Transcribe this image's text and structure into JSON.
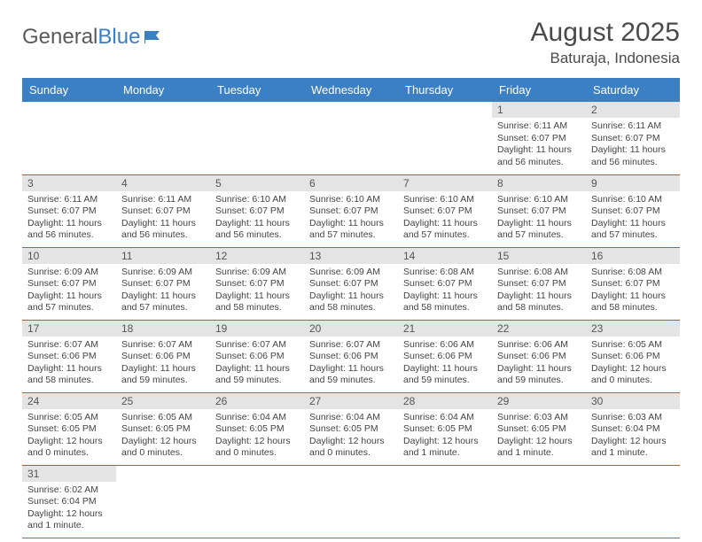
{
  "logo": {
    "text1": "General",
    "text2": "Blue"
  },
  "title": "August 2025",
  "location": "Baturaja, Indonesia",
  "colors": {
    "header_bg": "#3b7fc4",
    "header_text": "#ffffff",
    "daynum_bg": "#e4e4e4",
    "cell_border": "#3b7fc4",
    "body_text": "#444444"
  },
  "dayHeaders": [
    "Sunday",
    "Monday",
    "Tuesday",
    "Wednesday",
    "Thursday",
    "Friday",
    "Saturday"
  ],
  "weeks": [
    [
      null,
      null,
      null,
      null,
      null,
      {
        "n": "1",
        "sr": "Sunrise: 6:11 AM",
        "ss": "Sunset: 6:07 PM",
        "dl": "Daylight: 11 hours and 56 minutes."
      },
      {
        "n": "2",
        "sr": "Sunrise: 6:11 AM",
        "ss": "Sunset: 6:07 PM",
        "dl": "Daylight: 11 hours and 56 minutes."
      }
    ],
    [
      {
        "n": "3",
        "sr": "Sunrise: 6:11 AM",
        "ss": "Sunset: 6:07 PM",
        "dl": "Daylight: 11 hours and 56 minutes."
      },
      {
        "n": "4",
        "sr": "Sunrise: 6:11 AM",
        "ss": "Sunset: 6:07 PM",
        "dl": "Daylight: 11 hours and 56 minutes."
      },
      {
        "n": "5",
        "sr": "Sunrise: 6:10 AM",
        "ss": "Sunset: 6:07 PM",
        "dl": "Daylight: 11 hours and 56 minutes."
      },
      {
        "n": "6",
        "sr": "Sunrise: 6:10 AM",
        "ss": "Sunset: 6:07 PM",
        "dl": "Daylight: 11 hours and 57 minutes."
      },
      {
        "n": "7",
        "sr": "Sunrise: 6:10 AM",
        "ss": "Sunset: 6:07 PM",
        "dl": "Daylight: 11 hours and 57 minutes."
      },
      {
        "n": "8",
        "sr": "Sunrise: 6:10 AM",
        "ss": "Sunset: 6:07 PM",
        "dl": "Daylight: 11 hours and 57 minutes."
      },
      {
        "n": "9",
        "sr": "Sunrise: 6:10 AM",
        "ss": "Sunset: 6:07 PM",
        "dl": "Daylight: 11 hours and 57 minutes."
      }
    ],
    [
      {
        "n": "10",
        "sr": "Sunrise: 6:09 AM",
        "ss": "Sunset: 6:07 PM",
        "dl": "Daylight: 11 hours and 57 minutes."
      },
      {
        "n": "11",
        "sr": "Sunrise: 6:09 AM",
        "ss": "Sunset: 6:07 PM",
        "dl": "Daylight: 11 hours and 57 minutes."
      },
      {
        "n": "12",
        "sr": "Sunrise: 6:09 AM",
        "ss": "Sunset: 6:07 PM",
        "dl": "Daylight: 11 hours and 58 minutes."
      },
      {
        "n": "13",
        "sr": "Sunrise: 6:09 AM",
        "ss": "Sunset: 6:07 PM",
        "dl": "Daylight: 11 hours and 58 minutes."
      },
      {
        "n": "14",
        "sr": "Sunrise: 6:08 AM",
        "ss": "Sunset: 6:07 PM",
        "dl": "Daylight: 11 hours and 58 minutes."
      },
      {
        "n": "15",
        "sr": "Sunrise: 6:08 AM",
        "ss": "Sunset: 6:07 PM",
        "dl": "Daylight: 11 hours and 58 minutes."
      },
      {
        "n": "16",
        "sr": "Sunrise: 6:08 AM",
        "ss": "Sunset: 6:07 PM",
        "dl": "Daylight: 11 hours and 58 minutes."
      }
    ],
    [
      {
        "n": "17",
        "sr": "Sunrise: 6:07 AM",
        "ss": "Sunset: 6:06 PM",
        "dl": "Daylight: 11 hours and 58 minutes."
      },
      {
        "n": "18",
        "sr": "Sunrise: 6:07 AM",
        "ss": "Sunset: 6:06 PM",
        "dl": "Daylight: 11 hours and 59 minutes."
      },
      {
        "n": "19",
        "sr": "Sunrise: 6:07 AM",
        "ss": "Sunset: 6:06 PM",
        "dl": "Daylight: 11 hours and 59 minutes."
      },
      {
        "n": "20",
        "sr": "Sunrise: 6:07 AM",
        "ss": "Sunset: 6:06 PM",
        "dl": "Daylight: 11 hours and 59 minutes."
      },
      {
        "n": "21",
        "sr": "Sunrise: 6:06 AM",
        "ss": "Sunset: 6:06 PM",
        "dl": "Daylight: 11 hours and 59 minutes."
      },
      {
        "n": "22",
        "sr": "Sunrise: 6:06 AM",
        "ss": "Sunset: 6:06 PM",
        "dl": "Daylight: 11 hours and 59 minutes."
      },
      {
        "n": "23",
        "sr": "Sunrise: 6:05 AM",
        "ss": "Sunset: 6:06 PM",
        "dl": "Daylight: 12 hours and 0 minutes."
      }
    ],
    [
      {
        "n": "24",
        "sr": "Sunrise: 6:05 AM",
        "ss": "Sunset: 6:05 PM",
        "dl": "Daylight: 12 hours and 0 minutes."
      },
      {
        "n": "25",
        "sr": "Sunrise: 6:05 AM",
        "ss": "Sunset: 6:05 PM",
        "dl": "Daylight: 12 hours and 0 minutes."
      },
      {
        "n": "26",
        "sr": "Sunrise: 6:04 AM",
        "ss": "Sunset: 6:05 PM",
        "dl": "Daylight: 12 hours and 0 minutes."
      },
      {
        "n": "27",
        "sr": "Sunrise: 6:04 AM",
        "ss": "Sunset: 6:05 PM",
        "dl": "Daylight: 12 hours and 0 minutes."
      },
      {
        "n": "28",
        "sr": "Sunrise: 6:04 AM",
        "ss": "Sunset: 6:05 PM",
        "dl": "Daylight: 12 hours and 1 minute."
      },
      {
        "n": "29",
        "sr": "Sunrise: 6:03 AM",
        "ss": "Sunset: 6:05 PM",
        "dl": "Daylight: 12 hours and 1 minute."
      },
      {
        "n": "30",
        "sr": "Sunrise: 6:03 AM",
        "ss": "Sunset: 6:04 PM",
        "dl": "Daylight: 12 hours and 1 minute."
      }
    ],
    [
      {
        "n": "31",
        "sr": "Sunrise: 6:02 AM",
        "ss": "Sunset: 6:04 PM",
        "dl": "Daylight: 12 hours and 1 minute."
      },
      null,
      null,
      null,
      null,
      null,
      null
    ]
  ]
}
